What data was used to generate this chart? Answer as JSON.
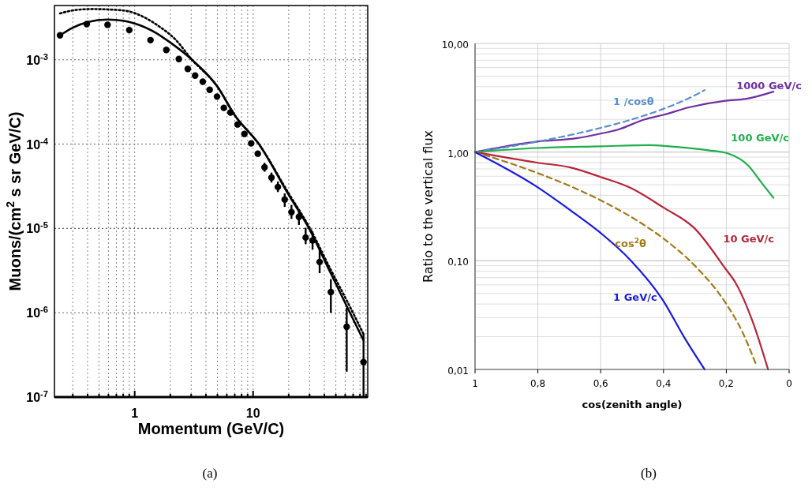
{
  "chart_data": [
    {
      "type": "scatter",
      "xlabel": "Momentum (GeV/C)",
      "ylabel": "Muons/(cm$^{2}$ s sr GeV/C)",
      "log": "xy",
      "grid": true,
      "xlim": [
        0.21,
        93
      ],
      "ylim": [
        1e-07,
        0.0044
      ],
      "xticks": [
        {
          "value": 0.3,
          "label": null
        },
        {
          "value": 0.4,
          "label": null
        },
        {
          "value": 0.5,
          "label": null
        },
        {
          "value": 0.6,
          "label": null
        },
        {
          "value": 0.7,
          "label": null
        },
        {
          "value": 0.8,
          "label": null
        },
        {
          "value": 0.9,
          "label": null
        },
        1,
        {
          "value": 2,
          "label": null
        },
        {
          "value": 3,
          "label": null
        },
        {
          "value": 4,
          "label": null
        },
        {
          "value": 5,
          "label": null
        },
        {
          "value": 6,
          "label": null
        },
        {
          "value": 7,
          "label": null
        },
        {
          "value": 8,
          "label": null
        },
        {
          "value": 9,
          "label": null
        },
        10,
        {
          "value": 20,
          "label": null
        },
        {
          "value": 30,
          "label": null
        },
        {
          "value": 40,
          "label": null
        },
        {
          "value": 50,
          "label": null
        },
        {
          "value": 60,
          "label": null
        },
        {
          "value": 70,
          "label": null
        },
        {
          "value": 80,
          "label": null
        },
        {
          "value": 90,
          "label": null
        }
      ],
      "yticks": [
        {
          "value": 1e-07,
          "label": "10$^{-7}$"
        },
        {
          "value": 1e-06,
          "label": "10$^{-6}$"
        },
        {
          "value": 1e-05,
          "label": "10$^{-5}$"
        },
        {
          "value": 0.0001,
          "label": "10$^{-4}$"
        },
        {
          "value": 0.001,
          "label": "10$^{-3}$"
        }
      ],
      "annotations": [
        "(a)"
      ],
      "series": [
        {
          "marker": "circle",
          "color": "#000000",
          "x": [
            0.234,
            0.394,
            0.59,
            0.9,
            1.36,
            1.85,
            2.36,
            2.81,
            3.24,
            3.76,
            4.3,
            4.96,
            5.66,
            6.44,
            7.39,
            8.45,
            9.64,
            10.96,
            12.5,
            14.3,
            16.2,
            18.5,
            21.1,
            24.4,
            27.8,
            31.8,
            36.5,
            45.4,
            61.8,
            85.7
          ],
          "values": [
            0.00195,
            0.00265,
            0.0026,
            0.00225,
            0.00171,
            0.00131,
            0.00102,
            0.00078,
            0.00065,
            0.00055,
            0.00044,
            0.000366,
            0.000269,
            0.000237,
            0.000171,
            0.000132,
            0.000102,
            7.7e-05,
            5.3e-05,
            4e-05,
            3.1e-05,
            2.2e-05,
            1.56e-05,
            1.37e-05,
            7.8e-06,
            7.2e-06,
            4e-06,
            1.76e-06,
            6.8e-07,
            2.6e-07
          ],
          "errors": [
            null,
            null,
            null,
            null,
            null,
            null,
            null,
            null,
            null,
            null,
            null,
            null,
            null,
            null,
            null,
            null,
            null,
            null,
            [
              4.7e-05,
              6e-05
            ],
            [
              3.5e-05,
              4.6e-05
            ],
            [
              2.7e-05,
              3.6e-05
            ],
            [
              1.8e-05,
              2.6e-05
            ],
            [
              1.3e-05,
              1.9e-05
            ],
            [
              1.1e-05,
              1.65e-05
            ],
            [
              6.5e-06,
              1.02e-05
            ],
            [
              5.6e-06,
              9.2e-06
            ],
            [
              2.95e-06,
              5.6e-06
            ],
            [
              1e-06,
              2.5e-06
            ],
            [
              2e-07,
              1.15e-06
            ],
            [
              1.02e-07,
              5.6e-07
            ]
          ]
        },
        {
          "type": "line",
          "line_style": "solid",
          "color": "#000000",
          "x": [
            0.234,
            0.3,
            0.4,
            0.59,
            0.8,
            1.0,
            1.5,
            2,
            3.05,
            5,
            7,
            11.2,
            20,
            29.7,
            45,
            61.8,
            85.7
          ],
          "values": [
            0.00195,
            0.0024,
            0.0028,
            0.003,
            0.0029,
            0.0027,
            0.0021,
            0.0016,
            0.001,
            0.00048,
            0.00022,
            0.0001,
            2.5e-05,
            1e-05,
            3e-06,
            1.2e-06,
            4.7e-07
          ]
        },
        {
          "type": "line",
          "line_style": "dotted",
          "color": "#000000",
          "x": [
            0.234,
            0.3,
            0.44,
            0.6,
            0.85,
            1.2,
            1.6,
            2.2,
            3.05,
            5,
            7,
            11.2,
            20,
            29.7,
            45,
            61.8,
            85.7
          ],
          "values": [
            0.00355,
            0.00385,
            0.004,
            0.00395,
            0.0038,
            0.0032,
            0.0025,
            0.00175,
            0.001,
            0.00048,
            0.00022,
            0.0001,
            2.6e-05,
            1.05e-05,
            3.3e-06,
            1.4e-06,
            5.6e-07
          ]
        }
      ]
    },
    {
      "type": "line",
      "xlabel": "cos(zenith angle)",
      "ylabel": "Ratio to the vertical flux",
      "log": "y",
      "grid": true,
      "xlim": [
        1,
        0
      ],
      "ylim": [
        0.01,
        10
      ],
      "xticks": [
        1,
        {
          "value": 0.8,
          "label": "0,8"
        },
        {
          "value": 0.6,
          "label": "0,6"
        },
        {
          "value": 0.4,
          "label": "0,4"
        },
        {
          "value": 0.2,
          "label": "0,2"
        },
        0
      ],
      "yticks": [
        {
          "value": 0.01,
          "label": "0,01"
        },
        {
          "value": 0.02,
          "label": null
        },
        {
          "value": 0.03,
          "label": null
        },
        {
          "value": 0.04,
          "label": null
        },
        {
          "value": 0.05,
          "label": null
        },
        {
          "value": 0.06,
          "label": null
        },
        {
          "value": 0.07,
          "label": null
        },
        {
          "value": 0.08,
          "label": null
        },
        {
          "value": 0.09,
          "label": null
        },
        {
          "value": 0.1,
          "label": "0,10"
        },
        {
          "value": 0.2,
          "label": null
        },
        {
          "value": 0.3,
          "label": null
        },
        {
          "value": 0.4,
          "label": null
        },
        {
          "value": 0.5,
          "label": null
        },
        {
          "value": 0.6,
          "label": null
        },
        {
          "value": 0.7,
          "label": null
        },
        {
          "value": 0.8,
          "label": null
        },
        {
          "value": 0.9,
          "label": null
        },
        {
          "value": 1,
          "label": "1,00"
        },
        {
          "value": 2,
          "label": null
        },
        {
          "value": 3,
          "label": null
        },
        {
          "value": 4,
          "label": null
        },
        {
          "value": 5,
          "label": null
        },
        {
          "value": 6,
          "label": null
        },
        {
          "value": 7,
          "label": null
        },
        {
          "value": 8,
          "label": null
        },
        {
          "value": 9,
          "label": null
        },
        {
          "value": 10,
          "label": "10,00"
        }
      ],
      "annotations": [
        "(b)"
      ],
      "series": [
        {
          "name": "1000 GeV/c",
          "color": "#7030a0",
          "line_style": "solid",
          "x": [
            1,
            0.803,
            0.678,
            0.6,
            0.545,
            0.46,
            0.401,
            0.319,
            0.202,
            0.14,
            0.05
          ],
          "values": [
            1,
            1.25,
            1.34,
            1.48,
            1.61,
            2.0,
            2.2,
            2.58,
            2.97,
            3.08,
            3.6
          ]
        },
        {
          "name": "1 /cosθ",
          "color": "#5b8fc8",
          "line_style": "dashed",
          "x": [
            1,
            0.9,
            0.8,
            0.7,
            0.6,
            0.5,
            0.4,
            0.3,
            0.269
          ],
          "values": [
            1,
            1.11,
            1.25,
            1.43,
            1.67,
            2,
            2.5,
            3.33,
            3.72
          ]
        },
        {
          "name": "100 GeV/c",
          "color": "#1fae4a",
          "line_style": "solid",
          "x": [
            1,
            0.803,
            0.6,
            0.444,
            0.382,
            0.257,
            0.194,
            0.132,
            0.085,
            0.05
          ],
          "values": [
            1,
            1.09,
            1.13,
            1.16,
            1.13,
            1.04,
            0.97,
            0.76,
            0.51,
            0.38
          ]
        },
        {
          "name": "10 GeV/c",
          "color": "#b5253a",
          "line_style": "solid",
          "x": [
            1,
            0.803,
            0.694,
            0.6,
            0.506,
            0.401,
            0.302,
            0.202,
            0.171,
            0.117,
            0.067
          ],
          "values": [
            1,
            0.8,
            0.72,
            0.59,
            0.47,
            0.31,
            0.2,
            0.084,
            0.063,
            0.028,
            0.01
          ]
        },
        {
          "name": "cos$^{2}$θ",
          "color": "#a07a1a",
          "line_style": "dashed",
          "x": [
            1,
            0.9,
            0.8,
            0.7,
            0.6,
            0.5,
            0.4,
            0.3,
            0.2,
            0.15,
            0.107
          ],
          "values": [
            1,
            0.81,
            0.64,
            0.49,
            0.36,
            0.25,
            0.16,
            0.09,
            0.04,
            0.0225,
            0.0114
          ]
        },
        {
          "name": "1 GeV/c",
          "color": "#1a1adb",
          "line_style": "solid",
          "x": [
            1,
            0.803,
            0.686,
            0.6,
            0.506,
            0.401,
            0.335,
            0.269
          ],
          "values": [
            1,
            0.48,
            0.277,
            0.18,
            0.102,
            0.043,
            0.02,
            0.01
          ]
        }
      ]
    }
  ]
}
